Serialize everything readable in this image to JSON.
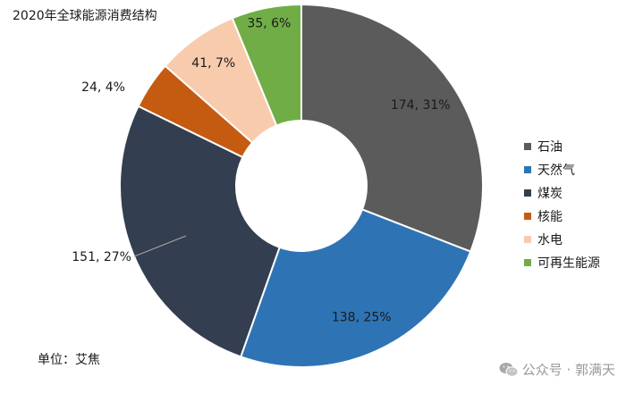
{
  "chart_data": {
    "type": "pie",
    "donut": true,
    "title": "2020年全球能源消费结构",
    "unit_note": "单位：艾焦",
    "legend_position": "right",
    "categories": [
      "石油",
      "天然气",
      "煤炭",
      "核能",
      "水电",
      "可再生能源"
    ],
    "values": [
      174,
      138,
      151,
      24,
      41,
      35
    ],
    "percents": [
      31,
      25,
      27,
      4,
      7,
      6
    ],
    "labels": [
      "174, 31%",
      "138, 25%",
      "151, 27%",
      "24, 4%",
      "41, 7%",
      "35, 6%"
    ],
    "colors": [
      "#5b5b5b",
      "#2e74b5",
      "#333f50",
      "#c55a11",
      "#f8cbad",
      "#70ad47"
    ]
  },
  "watermark": "公众号 · 郭满天"
}
